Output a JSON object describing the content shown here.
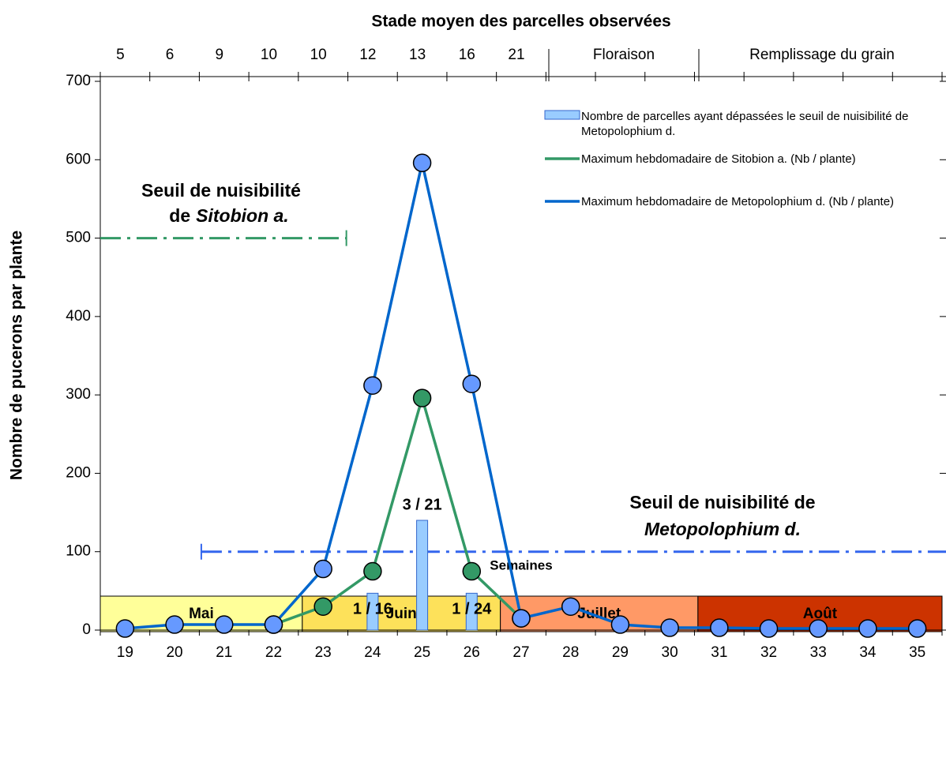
{
  "chart_data": {
    "type": "line",
    "title": "Stade moyen des parcelles observées",
    "x_label": "Semaines",
    "y_label": "Nombre de pucerons par plante",
    "categories": [
      "19",
      "20",
      "21",
      "22",
      "23",
      "24",
      "25",
      "26",
      "27",
      "28",
      "29",
      "30",
      "31",
      "32",
      "33",
      "34",
      "35"
    ],
    "ylim": [
      0,
      700
    ],
    "yticks": [
      0,
      100,
      200,
      300,
      400,
      500,
      600,
      700
    ],
    "stages": [
      "5",
      "6",
      "9",
      "10",
      "10",
      "12",
      "13",
      "16",
      "21"
    ],
    "phases": [
      "Floraison",
      "Remplissage du grain"
    ],
    "months": [
      {
        "name": "Mai",
        "color": "#ffff99"
      },
      {
        "name": "Juin",
        "color": "#fde15a"
      },
      {
        "name": "Juillet",
        "color": "#ff9966"
      },
      {
        "name": "Août",
        "color": "#cc3300"
      }
    ],
    "series": [
      {
        "name": "Nombre de parcelles ayant dépassées le seuil de nuisibilité de Metopolophium d.",
        "type": "bar",
        "color": "#99ccff",
        "values": [
          null,
          null,
          null,
          null,
          null,
          47,
          140,
          47,
          null,
          null,
          null,
          null,
          null,
          null,
          null,
          null,
          null
        ],
        "labels": [
          null,
          null,
          null,
          null,
          null,
          "1 / 16",
          "3 / 21",
          "1 / 24",
          null,
          null,
          null,
          null,
          null,
          null,
          null,
          null,
          null
        ]
      },
      {
        "name": "Maximum hebdomadaire de Sitobion a. (Nb / plante)",
        "type": "line",
        "color": "#339966",
        "values": [
          null,
          null,
          null,
          7,
          30,
          75,
          296,
          75,
          15,
          null,
          null,
          null,
          null,
          null,
          null,
          null,
          null
        ]
      },
      {
        "name": "Maximum hebdomadaire de Metopolophium d. (Nb / plante)",
        "type": "line",
        "color": "#0066cc",
        "values": [
          2,
          7,
          7,
          7,
          78,
          312,
          596,
          314,
          15,
          30,
          7,
          3,
          3,
          2,
          2,
          2,
          2
        ]
      }
    ],
    "thresholds": [
      {
        "value": 500,
        "color": "#339966",
        "label": [
          [
            "Seuil de nuisibilité"
          ],
          [
            "de",
            "Sitobion a."
          ]
        ]
      },
      {
        "value": 100,
        "color": "#3366ee",
        "label": [
          [
            "Seuil de nuisibilité de"
          ],
          [
            "Metopolophium d."
          ]
        ]
      }
    ]
  }
}
